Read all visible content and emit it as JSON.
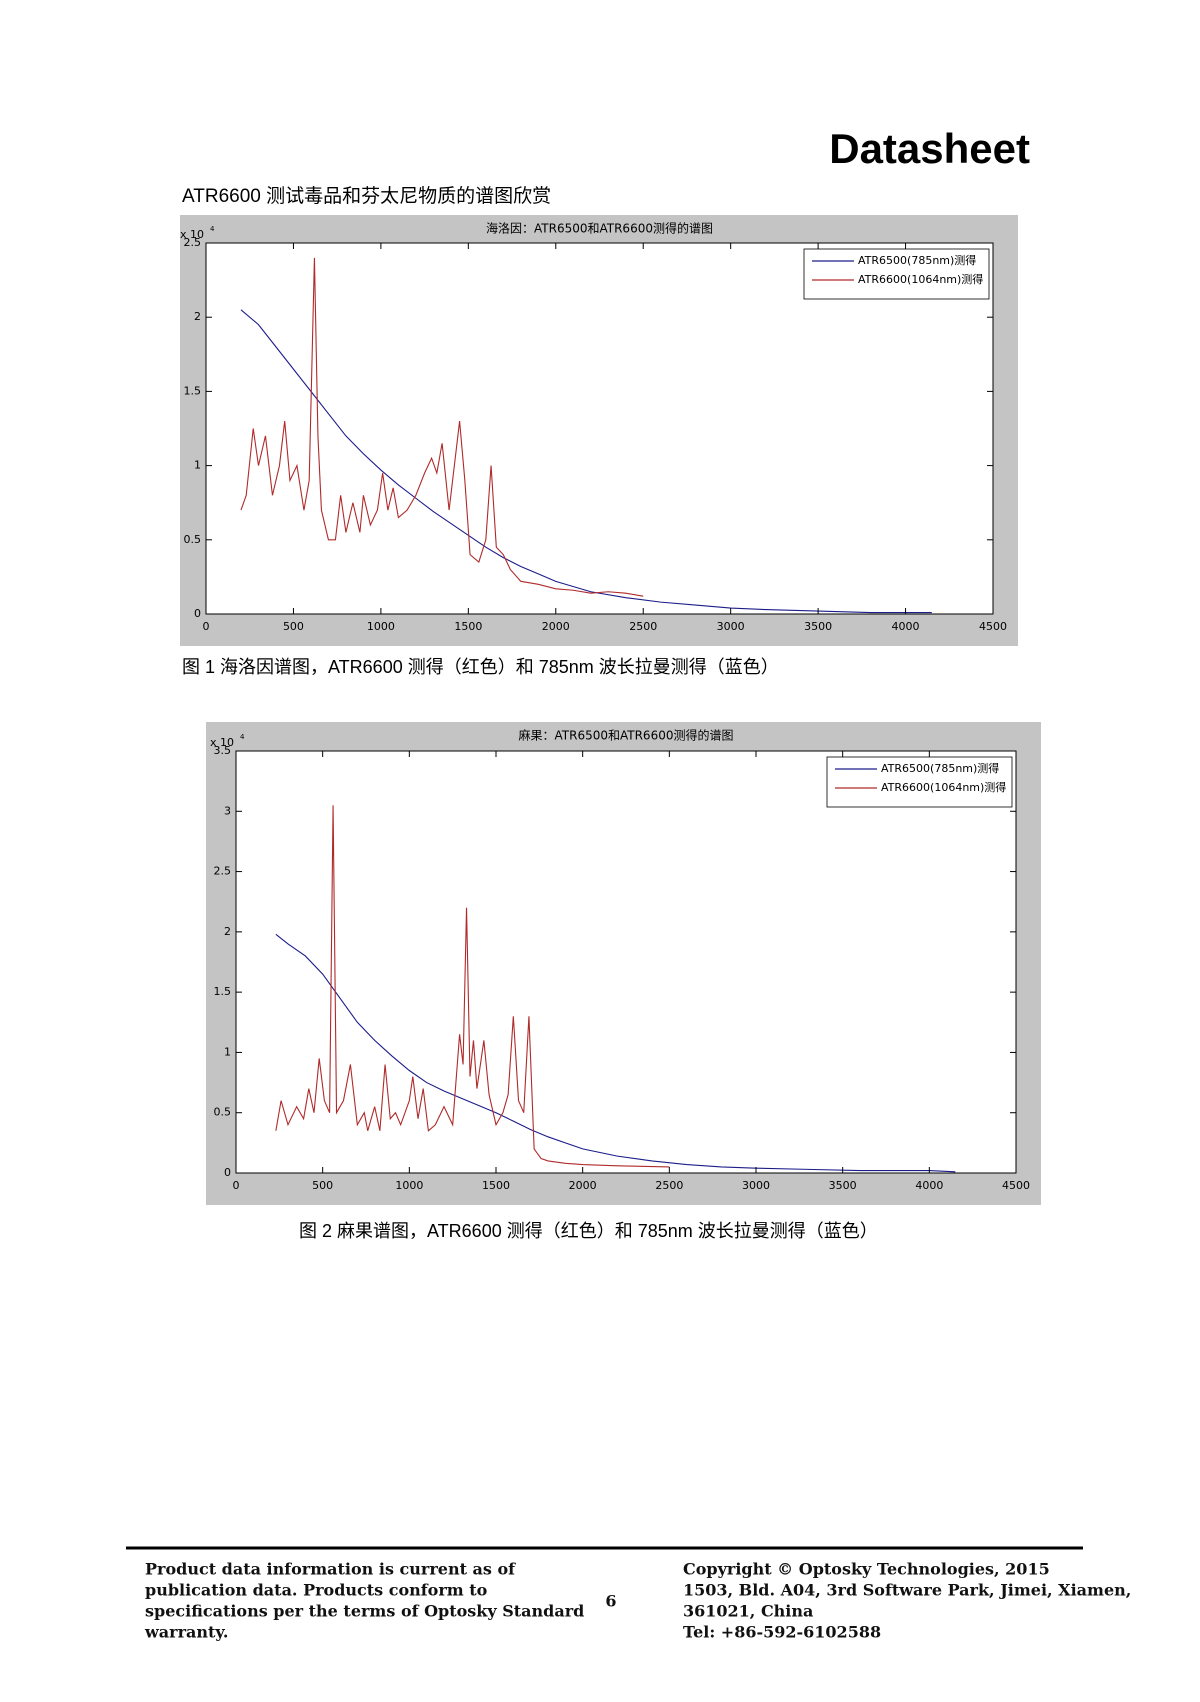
{
  "header": {
    "title": "Datasheet",
    "subtitle": "ATR6600 测试毒品和芬太尼物质的谱图欣赏"
  },
  "chart_data": [
    {
      "type": "line",
      "title": "海洛因：ATR6500和ATR6600测得的谱图",
      "caption": "图 1 海洛因谱图，ATR6600 测得（红色）和 785nm 波长拉曼测得（蓝色）",
      "y_multiplier": "x 10",
      "y_multiplier_exponent": "4",
      "xlim": [
        0,
        4500
      ],
      "xticks": [
        0,
        500,
        1000,
        1500,
        2000,
        2500,
        3000,
        3500,
        4000,
        4500
      ],
      "ylim": [
        0,
        2.5
      ],
      "yticks": [
        0,
        0.5,
        1,
        1.5,
        2,
        2.5
      ],
      "grid": false,
      "legend": "upper right",
      "series": [
        {
          "name": "ATR6500(785nm)测得",
          "color": "#1c1c8a",
          "x": [
            200,
            300,
            400,
            500,
            600,
            700,
            800,
            900,
            1000,
            1100,
            1200,
            1300,
            1400,
            1500,
            1600,
            1700,
            1800,
            1900,
            2000,
            2200,
            2400,
            2600,
            2800,
            3000,
            3200,
            3500,
            3800,
            4150
          ],
          "values": [
            2.05,
            1.95,
            1.8,
            1.65,
            1.5,
            1.35,
            1.2,
            1.08,
            0.97,
            0.87,
            0.78,
            0.69,
            0.61,
            0.53,
            0.45,
            0.38,
            0.32,
            0.27,
            0.22,
            0.15,
            0.11,
            0.08,
            0.06,
            0.04,
            0.03,
            0.02,
            0.01,
            0.01
          ]
        },
        {
          "name": "ATR6600(1064nm)测得",
          "color": "#b02a2a",
          "x": [
            200,
            230,
            270,
            300,
            340,
            380,
            420,
            450,
            480,
            520,
            560,
            590,
            620,
            640,
            660,
            700,
            740,
            770,
            800,
            840,
            880,
            900,
            940,
            980,
            1010,
            1040,
            1070,
            1100,
            1150,
            1200,
            1250,
            1290,
            1320,
            1350,
            1390,
            1430,
            1450,
            1480,
            1510,
            1560,
            1600,
            1630,
            1660,
            1700,
            1740,
            1800,
            1900,
            2000,
            2100,
            2200,
            2300,
            2400,
            2500
          ],
          "values": [
            0.7,
            0.8,
            1.25,
            1.0,
            1.2,
            0.8,
            1.0,
            1.3,
            0.9,
            1.0,
            0.7,
            0.9,
            2.4,
            1.2,
            0.7,
            0.5,
            0.5,
            0.8,
            0.55,
            0.75,
            0.55,
            0.8,
            0.6,
            0.7,
            0.95,
            0.7,
            0.85,
            0.65,
            0.7,
            0.8,
            0.95,
            1.05,
            0.95,
            1.15,
            0.7,
            1.1,
            1.3,
            0.9,
            0.4,
            0.35,
            0.5,
            1.0,
            0.45,
            0.4,
            0.3,
            0.22,
            0.2,
            0.17,
            0.16,
            0.14,
            0.15,
            0.14,
            0.12
          ]
        }
      ]
    },
    {
      "type": "line",
      "title": "麻果：ATR6500和ATR6600测得的谱图",
      "caption": "图 2 麻果谱图，ATR6600 测得（红色）和 785nm 波长拉曼测得（蓝色）",
      "y_multiplier": "x 10",
      "y_multiplier_exponent": "4",
      "xlim": [
        0,
        4500
      ],
      "xticks": [
        0,
        500,
        1000,
        1500,
        2000,
        2500,
        3000,
        3500,
        4000,
        4500
      ],
      "ylim": [
        0,
        3.5
      ],
      "yticks": [
        0,
        0.5,
        1,
        1.5,
        2,
        2.5,
        3,
        3.5
      ],
      "grid": false,
      "legend": "upper right",
      "series": [
        {
          "name": "ATR6500(785nm)测得",
          "color": "#1c1c8a",
          "x": [
            230,
            300,
            400,
            500,
            600,
            700,
            800,
            900,
            1000,
            1100,
            1200,
            1300,
            1400,
            1500,
            1600,
            1700,
            1800,
            1900,
            2000,
            2200,
            2400,
            2600,
            2800,
            3000,
            3300,
            3600,
            4000,
            4150
          ],
          "values": [
            1.98,
            1.9,
            1.8,
            1.65,
            1.45,
            1.25,
            1.1,
            0.97,
            0.85,
            0.75,
            0.68,
            0.62,
            0.56,
            0.5,
            0.43,
            0.36,
            0.3,
            0.25,
            0.2,
            0.14,
            0.1,
            0.07,
            0.05,
            0.04,
            0.03,
            0.02,
            0.02,
            0.01
          ]
        },
        {
          "name": "ATR6600(1064nm)测得",
          "color": "#b02a2a",
          "x": [
            230,
            260,
            300,
            350,
            390,
            420,
            450,
            480,
            510,
            540,
            560,
            580,
            620,
            660,
            700,
            740,
            760,
            800,
            830,
            860,
            890,
            920,
            950,
            1000,
            1020,
            1050,
            1080,
            1110,
            1150,
            1200,
            1250,
            1290,
            1310,
            1330,
            1350,
            1370,
            1390,
            1430,
            1460,
            1500,
            1540,
            1570,
            1600,
            1630,
            1660,
            1690,
            1720,
            1760,
            1800,
            1900,
            2000,
            2200,
            2500
          ],
          "values": [
            0.35,
            0.6,
            0.4,
            0.55,
            0.45,
            0.7,
            0.5,
            0.95,
            0.6,
            0.5,
            3.05,
            0.5,
            0.6,
            0.9,
            0.4,
            0.5,
            0.35,
            0.55,
            0.35,
            0.9,
            0.45,
            0.5,
            0.4,
            0.6,
            0.8,
            0.45,
            0.7,
            0.35,
            0.4,
            0.55,
            0.4,
            1.15,
            0.9,
            2.2,
            0.8,
            1.1,
            0.7,
            1.1,
            0.65,
            0.4,
            0.5,
            0.65,
            1.3,
            0.6,
            0.5,
            1.3,
            0.2,
            0.12,
            0.1,
            0.08,
            0.07,
            0.06,
            0.05
          ]
        }
      ]
    }
  ],
  "footer": {
    "left": [
      "Product data information is current as of",
      "publication data. Products conform to",
      "specifications per the terms of Optosky Standard",
      "warranty."
    ],
    "page": 6,
    "right": [
      "Copyright © Optosky Technologies, 2015",
      "1503, Bld. A04, 3rd Software Park, Jimei, Xiamen,",
      "361021, China",
      "Tel: +86-592-6102588"
    ]
  }
}
